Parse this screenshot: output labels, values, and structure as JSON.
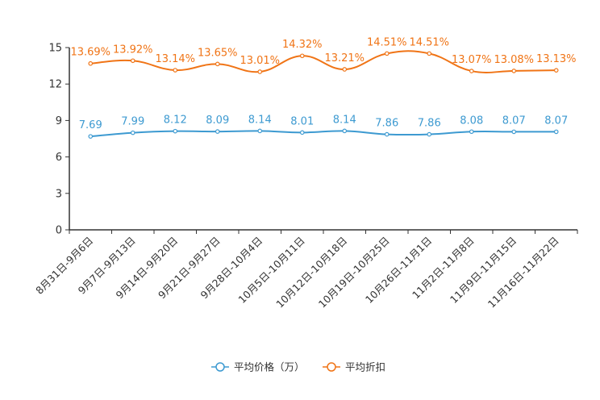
{
  "chart_data": {
    "type": "line",
    "title": "",
    "xlabel": "",
    "ylabel": "",
    "ylim": [
      0,
      15
    ],
    "yticks": [
      0,
      3,
      6,
      9,
      12,
      15
    ],
    "grid": false,
    "legend_position": "bottom-center",
    "categories": [
      "8月31日-9月6日",
      "9月7日-9月13日",
      "9月14日-9月20日",
      "9月21日-9月27日",
      "9月28日-10月4日",
      "10月5日-10月11日",
      "10月12日-10月18日",
      "10月19日-10月25日",
      "10月26日-11月1日",
      "11月2日-11月8日",
      "11月9日-11月15日",
      "11月16日-11月22日"
    ],
    "series": [
      {
        "name": "平均价格（万）",
        "color": "#3d9ad1",
        "values": [
          7.69,
          7.99,
          8.12,
          8.09,
          8.14,
          8.01,
          8.14,
          7.86,
          7.86,
          8.08,
          8.07,
          8.07
        ],
        "labels": [
          "7.69",
          "7.99",
          "8.12",
          "8.09",
          "8.14",
          "8.01",
          "8.14",
          "7.86",
          "7.86",
          "8.08",
          "8.07",
          "8.07"
        ]
      },
      {
        "name": "平均折扣",
        "color": "#f07416",
        "values": [
          13.69,
          13.92,
          13.14,
          13.65,
          13.01,
          14.32,
          13.21,
          14.51,
          14.51,
          13.07,
          13.08,
          13.13
        ],
        "labels": [
          "13.69%",
          "13.92%",
          "13.14%",
          "13.65%",
          "13.01%",
          "14.32%",
          "13.21%",
          "14.51%",
          "14.51%",
          "13.07%",
          "13.08%",
          "13.13%"
        ]
      }
    ]
  }
}
